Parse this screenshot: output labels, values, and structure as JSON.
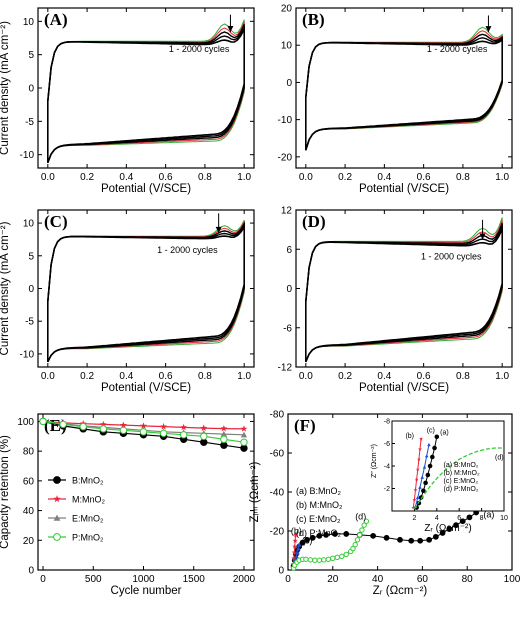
{
  "chart_data": [
    {
      "panel": "(A)",
      "type": "line",
      "kind": "cv",
      "xlabel": "Potential (V/SCE)",
      "ylabel": "Current density (mA cm⁻²)",
      "xlim": [
        -0.05,
        1.05
      ],
      "ylim": [
        -12,
        12
      ],
      "xticks": [
        "0.0",
        "0.2",
        "0.4",
        "0.6",
        "0.8",
        "1.0"
      ],
      "yticks": [
        "-10",
        "-5",
        "0",
        "5",
        "10"
      ],
      "ytick_values": [
        -10,
        -5,
        0,
        5,
        10
      ],
      "annotation": "1 - 2000 cycles",
      "cv": {
        "lower_start": -11.2,
        "lower_plateau": -8.6,
        "lower_plateau_end": -8.0,
        "upper_start": -2.0,
        "upper_plateau": 7.0,
        "upper_peak": 9.6,
        "upper_end": 10.2,
        "peak_spread": 1.0
      },
      "arrow": {
        "x": 0.93,
        "from": 11.0,
        "to": 8.4
      }
    },
    {
      "panel": "(B)",
      "type": "line",
      "kind": "cv",
      "xlabel": "Potential (V/SCE)",
      "ylabel": "",
      "xlim": [
        -0.05,
        1.05
      ],
      "ylim": [
        -23,
        20
      ],
      "xticks": [
        "0.0",
        "0.2",
        "0.4",
        "0.6",
        "0.8",
        "1.0"
      ],
      "yticks": [
        "-20",
        "-10",
        "0",
        "10",
        "20"
      ],
      "ytick_values": [
        -20,
        -10,
        0,
        10,
        20
      ],
      "annotation": "1 - 2000 cycles",
      "cv": {
        "lower_start": -18.2,
        "lower_plateau": -12.5,
        "lower_plateau_end": -11.0,
        "upper_start": -4.0,
        "upper_plateau": 10.8,
        "upper_peak": 14.8,
        "upper_end": 12.8,
        "peak_spread": 1.6
      },
      "arrow": {
        "x": 0.93,
        "from": 18.0,
        "to": 13.5
      }
    },
    {
      "panel": "(C)",
      "type": "line",
      "kind": "cv",
      "xlabel": "Potential (V/SCE)",
      "ylabel": "Current density (mA cm⁻²)",
      "xlim": [
        -0.05,
        1.05
      ],
      "ylim": [
        -12,
        12
      ],
      "xticks": [
        "0.0",
        "0.2",
        "0.4",
        "0.6",
        "0.8",
        "1.0"
      ],
      "yticks": [
        "-10",
        "-5",
        "0",
        "5",
        "10"
      ],
      "ytick_values": [
        -10,
        -5,
        0,
        5,
        10
      ],
      "annotation": "1 - 2000 cycles",
      "cv": {
        "lower_start": -11.2,
        "lower_plateau": -9.2,
        "lower_plateau_end": -8.4,
        "upper_start": -2.0,
        "upper_plateau": 8.0,
        "upper_peak": 9.6,
        "upper_end": 10.4,
        "peak_spread": 0.8
      },
      "arrow": {
        "x": 0.87,
        "from": 11.5,
        "to": 8.5
      }
    },
    {
      "panel": "(D)",
      "type": "line",
      "kind": "cv",
      "xlabel": "Potential (V/SCE)",
      "ylabel": "",
      "xlim": [
        -0.05,
        1.05
      ],
      "ylim": [
        -12,
        12
      ],
      "xticks": [
        "0.0",
        "0.2",
        "0.4",
        "0.6",
        "0.8",
        "1.0"
      ],
      "yticks": [
        "-12",
        "-6",
        "0",
        "6",
        "12"
      ],
      "ytick_values": [
        -12,
        -6,
        0,
        6,
        12
      ],
      "annotation": "1 - 2000 cycles",
      "cv": {
        "lower_start": -11.2,
        "lower_plateau": -8.8,
        "lower_plateau_end": -7.8,
        "upper_start": -2.0,
        "upper_plateau": 7.2,
        "upper_peak": 9.2,
        "upper_end": 10.8,
        "peak_spread": 1.4
      },
      "arrow": {
        "x": 0.9,
        "from": 10.5,
        "to": 7.5
      }
    },
    {
      "panel": "(E)",
      "type": "line",
      "xlabel": "Cycle number",
      "ylabel": "Capacity retention (%)",
      "xlim": [
        -50,
        2100
      ],
      "ylim": [
        0,
        105
      ],
      "xticks": [
        "0",
        "500",
        "1000",
        "1500",
        "2000"
      ],
      "xtick_values": [
        0,
        500,
        1000,
        1500,
        2000
      ],
      "yticks": [
        "0",
        "20",
        "40",
        "60",
        "80",
        "100"
      ],
      "ytick_values": [
        0,
        20,
        40,
        60,
        80,
        100
      ],
      "x": [
        0,
        200,
        400,
        600,
        800,
        1000,
        1200,
        1400,
        1600,
        1800,
        2000
      ],
      "series": [
        {
          "name": "B:MnO₂",
          "color": "#000000",
          "marker": "circle",
          "values": [
            100,
            97,
            95,
            93,
            92,
            91,
            90,
            88,
            86,
            84,
            82
          ]
        },
        {
          "name": "M:MnO₂",
          "color": "#e8263a",
          "marker": "star",
          "values": [
            100,
            99,
            98.5,
            98,
            97.5,
            97,
            96.5,
            96,
            95.5,
            95.2,
            95
          ]
        },
        {
          "name": "E:MnO₂",
          "color": "#808080",
          "marker": "triangle",
          "values": [
            100,
            98.5,
            97,
            96,
            95,
            94,
            93,
            92.5,
            92,
            91.5,
            91
          ]
        },
        {
          "name": "P:MnO₂",
          "color": "#33cc33",
          "marker": "circle-open",
          "values": [
            100,
            98,
            96.5,
            95,
            94,
            93,
            92,
            91,
            90,
            88,
            86
          ]
        }
      ]
    },
    {
      "panel": "(F)",
      "type": "line",
      "kind": "nyquist",
      "xlabel": "Zᵣ (Ωcm⁻²)",
      "ylabel": "Zᵢₘ (Ωcm⁻²)",
      "xlim": [
        0,
        100
      ],
      "ylim": [
        0,
        -80
      ],
      "xticks": [
        "0",
        "20",
        "40",
        "60",
        "80",
        "100"
      ],
      "xtick_values": [
        0,
        20,
        40,
        60,
        80,
        100
      ],
      "yticks": [
        "0",
        "-20",
        "-40",
        "-60",
        "-80"
      ],
      "ytick_values": [
        0,
        -20,
        -40,
        -60,
        -80
      ],
      "point_labels": [
        "(a)",
        "(b)",
        "(c)",
        "(d)"
      ],
      "legend": [
        "(a) B:MnO₂",
        "(b) M:MnO₂",
        "(c) E:MnO₂",
        "(d) P:MnO₂"
      ],
      "series": [
        {
          "name": "(a) B:MnO₂",
          "color": "#000000",
          "style": "circles",
          "x": [
            2.5,
            3,
            3.5,
            4,
            5,
            6.5,
            8.5,
            11,
            14,
            17,
            21,
            26,
            32,
            38,
            44,
            50,
            55,
            59,
            63,
            66,
            69,
            72,
            75,
            78,
            81,
            84,
            87,
            89
          ],
          "y": [
            -2,
            -5,
            -8,
            -10,
            -12,
            -14,
            -15.5,
            -16.5,
            -17.5,
            -18,
            -18.5,
            -18.5,
            -18,
            -17.5,
            -16.5,
            -15.5,
            -15,
            -15,
            -15.5,
            -17,
            -19,
            -21,
            -23,
            -25,
            -27,
            -29.5,
            -31.5,
            -33
          ]
        },
        {
          "name": "(b) M:MnO₂",
          "color": "#e8263a",
          "style": "stars",
          "x": [
            2.2,
            2.4,
            2.6,
            2.8,
            3.0,
            3.2,
            3.4
          ],
          "y": [
            -1,
            -3,
            -6,
            -9,
            -12,
            -15,
            -18
          ]
        },
        {
          "name": "(c) E:MnO₂",
          "color": "#1e4fd6",
          "style": "triangles",
          "x": [
            2.6,
            3,
            3.4,
            3.8,
            4.2,
            4.6,
            5
          ],
          "y": [
            -1,
            -3,
            -5,
            -7,
            -9,
            -11,
            -13
          ]
        },
        {
          "name": "(d) P:MnO₂",
          "color": "#33cc33",
          "style": "circles-open",
          "x": [
            2.5,
            3,
            4,
            5,
            6.5,
            8,
            10,
            12,
            14,
            16,
            18,
            20,
            22,
            24,
            26,
            28,
            29,
            30,
            31,
            32,
            33,
            34,
            35
          ],
          "y": [
            -1,
            -2.5,
            -4,
            -5,
            -5.5,
            -5.5,
            -5.2,
            -5,
            -5,
            -5.2,
            -5.5,
            -6,
            -6.5,
            -7,
            -8,
            -9.5,
            -11,
            -13,
            -15.5,
            -18,
            -20.5,
            -23,
            -25
          ]
        }
      ],
      "inset": {
        "xlim": [
          0,
          10
        ],
        "ylim": [
          0,
          -8
        ],
        "xlabel": "Zᵣ (Ωcm⁻²)",
        "ylabel": "Z″ (Ωcm⁻²)",
        "xticks": [
          "2",
          "4",
          "6",
          "8",
          "10"
        ],
        "xtick_values": [
          2,
          4,
          6,
          8,
          10
        ],
        "yticks": [
          "-2",
          "-4",
          "-6",
          "-8"
        ],
        "ytick_values": [
          -2,
          -4,
          -6,
          -8
        ],
        "point_labels": [
          "(a)",
          "(b)",
          "(c)",
          "(d)"
        ],
        "legend": [
          "(a) B:MnO₂",
          "(b) M:MnO₂",
          "(c) E:MnO₂",
          "(d) P:MnO₂"
        ],
        "series": [
          {
            "color": "#000000",
            "style": "circles",
            "x": [
              2.2,
              2.4,
              2.6,
              2.8,
              3.0,
              3.2,
              3.4,
              3.6,
              3.8,
              4.0
            ],
            "y": [
              -0.3,
              -0.7,
              -1.2,
              -1.8,
              -2.5,
              -3.2,
              -4,
              -4.8,
              -5.6,
              -6.6
            ]
          },
          {
            "color": "#e8263a",
            "style": "stars",
            "x": [
              1.9,
              2.0,
              2.1,
              2.2,
              2.3,
              2.4,
              2.5,
              2.6
            ],
            "y": [
              -0.3,
              -1,
              -1.9,
              -2.8,
              -3.7,
              -4.6,
              -5.5,
              -6.4
            ]
          },
          {
            "color": "#1e4fd6",
            "style": "triangles",
            "x": [
              2.1,
              2.3,
              2.5,
              2.7,
              2.9,
              3.1,
              3.3
            ],
            "y": [
              -0.4,
              -1.2,
              -2.1,
              -3.0,
              -3.9,
              -4.9,
              -5.9
            ]
          },
          {
            "color": "#33cc33",
            "style": "dashed",
            "x": [
              2.0,
              2.4,
              2.9,
              3.4,
              4.0,
              4.6,
              5.2,
              6.0,
              6.8,
              7.6,
              8.4,
              9.2,
              9.8
            ],
            "y": [
              -0.2,
              -0.8,
              -1.5,
              -2.2,
              -2.9,
              -3.5,
              -4.0,
              -4.6,
              -5.0,
              -5.3,
              -5.5,
              -5.6,
              -5.6
            ]
          }
        ]
      }
    }
  ]
}
